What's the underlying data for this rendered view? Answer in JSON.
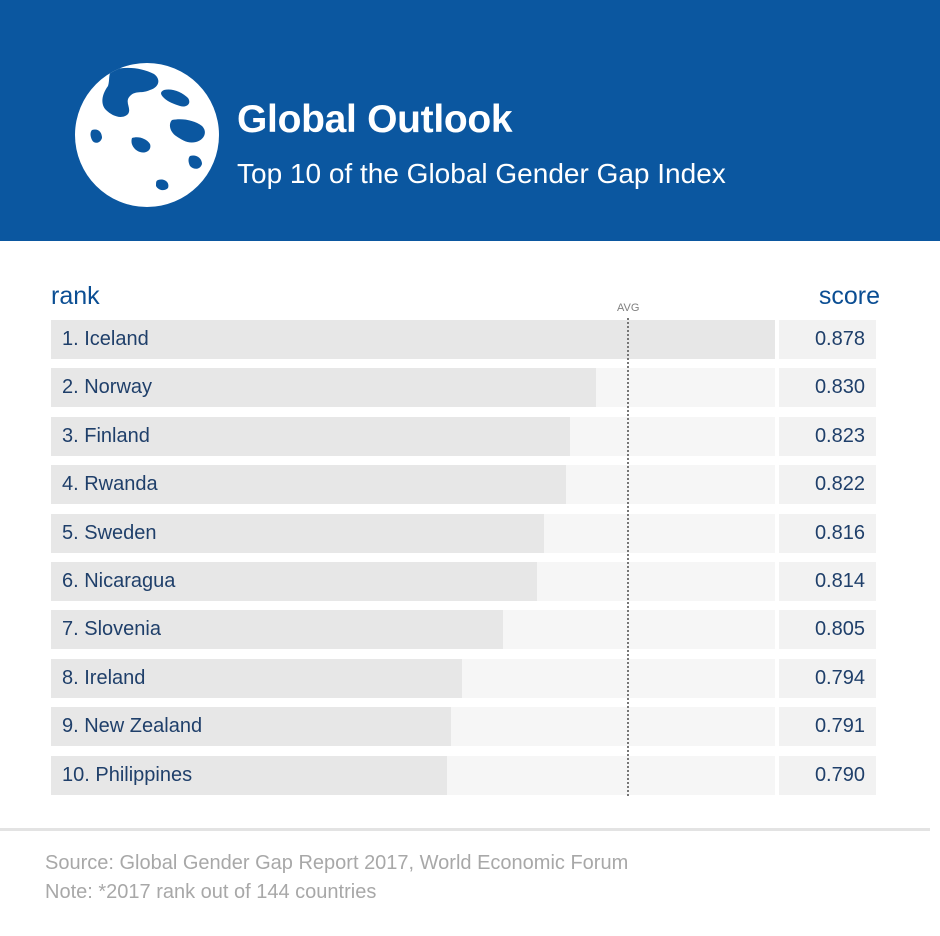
{
  "header": {
    "title": "Global Outlook",
    "subtitle": "Top 10 of the Global Gender Gap Index",
    "background_color": "#0b57a0",
    "icon": "globe-icon"
  },
  "chart_data": {
    "type": "bar",
    "orientation": "horizontal",
    "title": "Global Outlook",
    "subtitle": "Top 10 of the Global Gender Gap Index",
    "column_labels": {
      "left": "rank",
      "right": "score"
    },
    "reference_line_label": "AVG",
    "categories": [
      "1. Iceland",
      "2. Norway",
      "3. Finland",
      "4. Rwanda",
      "5. Sweden",
      "6. Nicaragua",
      "7. Slovenia",
      "8. Ireland",
      "9. New Zealand",
      "10. Philippines"
    ],
    "values": [
      0.878,
      0.83,
      0.823,
      0.822,
      0.816,
      0.814,
      0.805,
      0.794,
      0.791,
      0.79
    ],
    "value_labels": [
      "0.878",
      "0.830",
      "0.823",
      "0.822",
      "0.816",
      "0.814",
      "0.805",
      "0.794",
      "0.791",
      "0.790"
    ],
    "bar_color": "#e7e7e7",
    "track_color": "#f6f6f6"
  },
  "footer": {
    "source": "Source: Global Gender Gap Report 2017, World Economic Forum",
    "note": "Note: *2017 rank out of 144 countries"
  }
}
